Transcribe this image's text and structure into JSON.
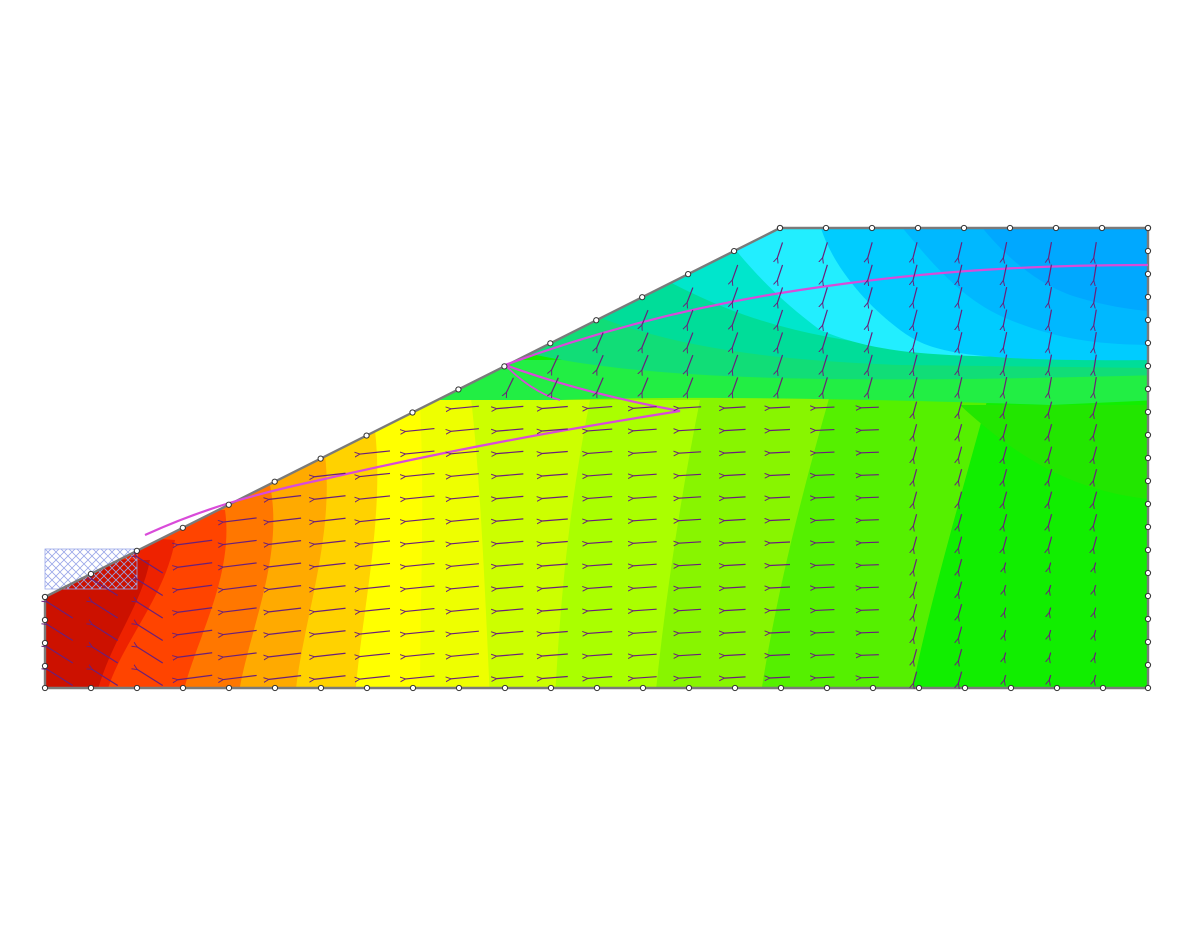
{
  "diagram": {
    "type": "slope-seepage-contour",
    "colors": {
      "background": "#ffffff",
      "boundary": "#7a7a7a",
      "node_fill": "#ffffff",
      "node_stroke": "#333333",
      "flow_vectors": "#6a1f7a",
      "phreatic_line": "#d94bd9",
      "seepage_face": "#9aa7e8",
      "contour_scale": [
        "#cc1100",
        "#ee3300",
        "#ff6600",
        "#ffaa00",
        "#ffdd00",
        "#ffff00",
        "#ccff00",
        "#88ff00",
        "#22ee00",
        "#00ee00",
        "#00dd99",
        "#22eeff",
        "#00ccff",
        "#00aaff"
      ]
    },
    "icons": {
      "node": "open-circle",
      "vector": "arrow"
    },
    "features": {
      "contours": "filled",
      "flow_vectors": "shown",
      "phreatic_surface": "shown",
      "seepage_face_hatch": "shown",
      "mesh_nodes_on_boundary": "shown"
    }
  }
}
